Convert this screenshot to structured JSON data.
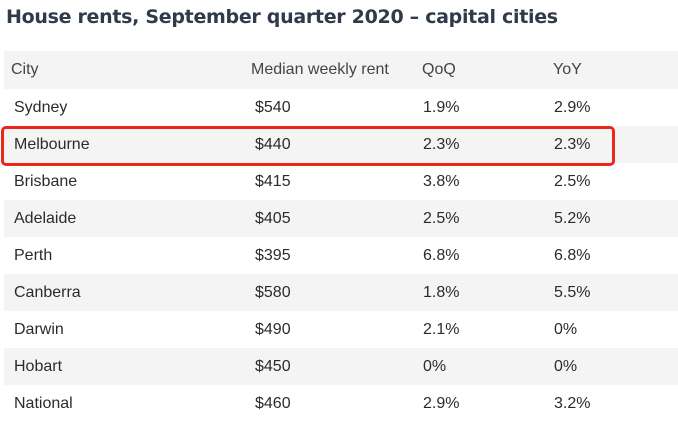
{
  "title": "House rents, September quarter 2020 – capital cities",
  "table": {
    "headers": {
      "city": "City",
      "rent": "Median weekly rent",
      "qoq": "QoQ",
      "yoy": "YoY"
    },
    "rows": [
      {
        "city": "Sydney",
        "rent": "$540",
        "qoq": "1.9%",
        "yoy": "2.9%"
      },
      {
        "city": "Melbourne",
        "rent": "$440",
        "qoq": "2.3%",
        "yoy": "2.3%"
      },
      {
        "city": "Brisbane",
        "rent": "$415",
        "qoq": "3.8%",
        "yoy": "2.5%"
      },
      {
        "city": "Adelaide",
        "rent": "$405",
        "qoq": "2.5%",
        "yoy": "5.2%"
      },
      {
        "city": "Perth",
        "rent": "$395",
        "qoq": "6.8%",
        "yoy": "6.8%"
      },
      {
        "city": "Canberra",
        "rent": "$580",
        "qoq": "1.8%",
        "yoy": "5.5%"
      },
      {
        "city": "Darwin",
        "rent": "$490",
        "qoq": "2.1%",
        "yoy": "0%"
      },
      {
        "city": "Hobart",
        "rent": "$450",
        "qoq": "0%",
        "yoy": "0%"
      },
      {
        "city": "National",
        "rent": "$460",
        "qoq": "2.9%",
        "yoy": "3.2%"
      }
    ],
    "highlighted_row": "Melbourne",
    "highlight_color": "#e8291c",
    "stripe_color": "#f4f4f4"
  }
}
